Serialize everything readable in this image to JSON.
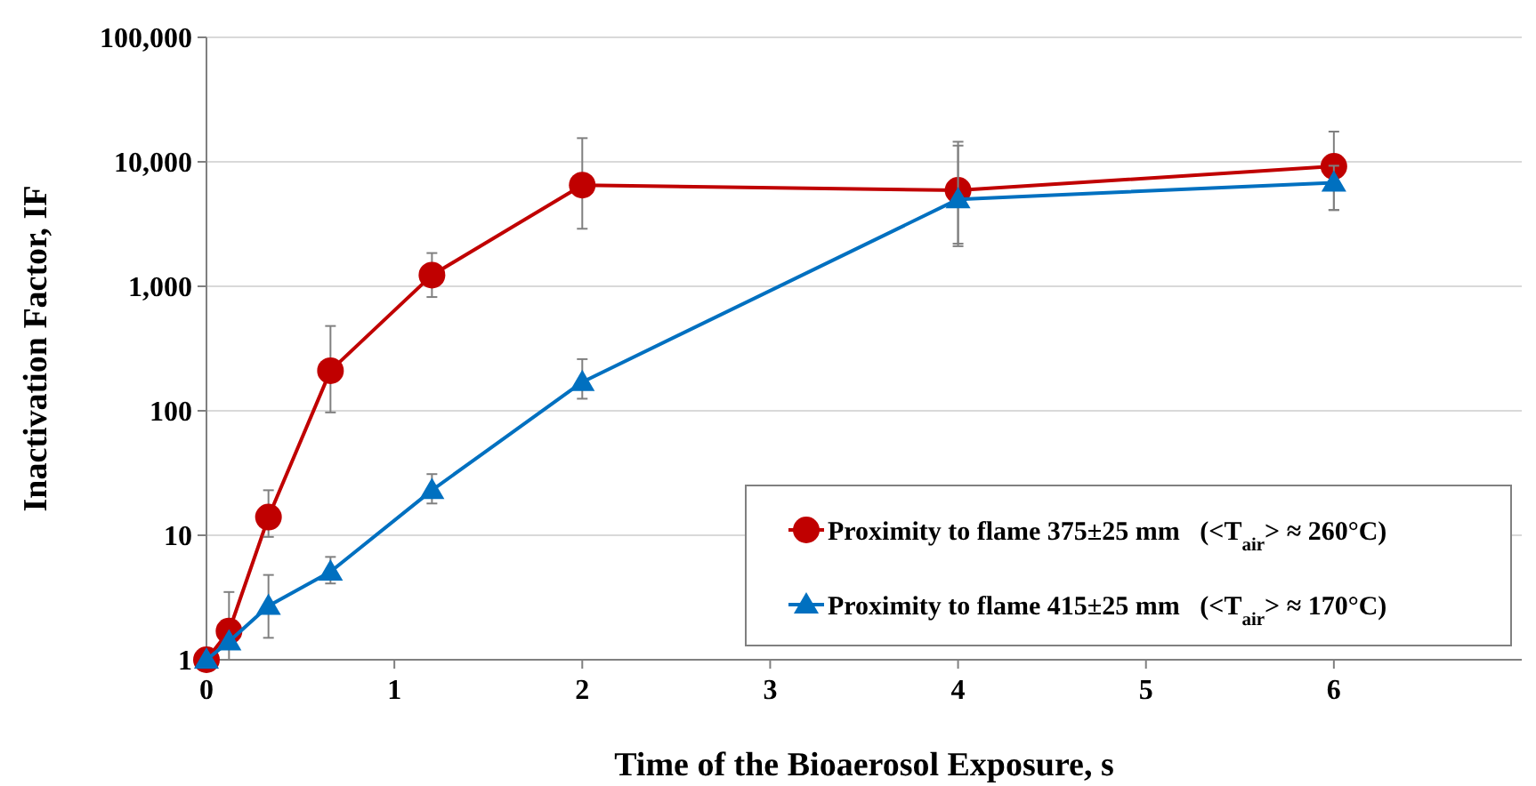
{
  "chart_data": {
    "type": "line",
    "xlabel": "Time of the Bioaerosol Exposure, s",
    "ylabel": "Inactivation Factor, IF",
    "log": "y",
    "grid": "y",
    "legend": "bottom right",
    "line_style": "solid",
    "xlim": [
      0,
      7
    ],
    "xticks": [
      0,
      1,
      2,
      3,
      4,
      5,
      6
    ],
    "ylim": [
      1,
      100000
    ],
    "yticks": [
      {
        "value": 1,
        "label": "1"
      },
      {
        "value": 10,
        "label": "10"
      },
      {
        "value": 100,
        "label": "100"
      },
      {
        "value": 1000,
        "label": "1,000"
      },
      {
        "value": 10000,
        "label": "10,000"
      },
      {
        "value": 100000,
        "label": "100,000"
      }
    ],
    "series": [
      {
        "name": "Proximity to flame 375±25 mm   (<T$_{air}$> ≈ 260°C)",
        "color": "#c00000",
        "marker": "circle",
        "x": [
          0,
          0.12,
          0.33,
          0.66,
          1.2,
          2,
          4,
          6
        ],
        "values": [
          1,
          1.7,
          14,
          210,
          1230,
          6500,
          5900,
          9200
        ],
        "errors": [
          null,
          [
            1,
            3.5
          ],
          [
            9.7,
            23
          ],
          [
            97,
            480
          ],
          [
            820,
            1850
          ],
          [
            2900,
            15500
          ],
          [
            2100,
            13500
          ],
          [
            4100,
            17500
          ]
        ]
      },
      {
        "name": "Proximity to flame 415±25 mm   (<T$_{air}$> ≈ 170°C)",
        "color": "#0070c0",
        "marker": "triangle",
        "x": [
          0,
          0.12,
          0.33,
          0.66,
          1.2,
          2,
          4,
          6
        ],
        "values": [
          1,
          1.4,
          2.7,
          5.1,
          23,
          170,
          5000,
          6800
        ],
        "errors": [
          null,
          null,
          [
            1.5,
            4.8
          ],
          [
            4.1,
            6.7
          ],
          [
            18,
            31
          ],
          [
            125,
            260
          ],
          [
            2200,
            14500
          ],
          [
            4100,
            9300
          ]
        ]
      }
    ]
  }
}
